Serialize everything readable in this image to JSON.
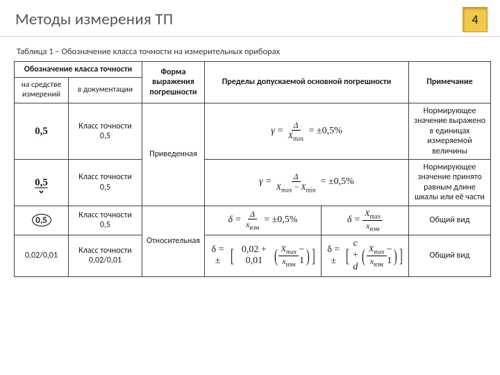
{
  "header": {
    "title": "Методы измерения ТП",
    "page": "4"
  },
  "table": {
    "caption": "Таблица 1 – Обозначение класса точности на измерительных приборах",
    "head": {
      "group1": "Обозначение класса точности",
      "sub1": "на средстве измерений",
      "sub2": "в документации",
      "col3": "Форма выражения погрешности",
      "col4": "Пределы допускаемой основной погрешности",
      "col5": "Примечание"
    },
    "rows": {
      "r1": {
        "sym": "0,5",
        "doc": "Класс точности 0,5",
        "note": "Нормирующее значение выражено в единицах измеряемой величины"
      },
      "rgroup1": "Приведенная",
      "r2": {
        "sym": "0,5",
        "doc": "Класс точности 0,5",
        "note": "Нормирующее значение принято равным длине шкалы или её части"
      },
      "r3": {
        "sym": "0,5",
        "doc": "Класс точности 0,5",
        "note": "Общий вид"
      },
      "rgroup2": "Относительная",
      "r4": {
        "sym": "0,02/0,01",
        "doc": "Класс точности 0,02/0,01",
        "note": "Общий вид"
      }
    },
    "formulas": {
      "f1a": {
        "lhs": "γ",
        "num": "Δ",
        "den": "X",
        "densub": "max",
        "rhs": "= ±0,5%"
      },
      "f2a": {
        "lhs": "γ",
        "num": "Δ",
        "den_a": "X",
        "den_a_sub": "max",
        "minus": "−",
        "den_b": "X",
        "den_b_sub": "min",
        "rhs": "= ±0,5%"
      },
      "f3a": {
        "lhs": "δ",
        "num": "Δ",
        "den": "x",
        "densub": "изм",
        "rhs": "= ±0,5%"
      },
      "f3b": {
        "lhs": "δ",
        "num": "X",
        "numsub": "max",
        "den": "x",
        "densub": "изм"
      },
      "f4a": {
        "lhs": "δ = ±",
        "a": "0,02 + 0,01",
        "frac_num": "X",
        "frac_num_sub": "max",
        "frac_den": "x",
        "frac_den_sub": "изм",
        "tail": "− 1"
      },
      "f4b": {
        "lhs": "δ = ±",
        "a": "c + d",
        "frac_num": "X",
        "frac_num_sub": "max",
        "frac_den": "x",
        "frac_den_sub": "изм",
        "tail": "− 1"
      }
    }
  }
}
